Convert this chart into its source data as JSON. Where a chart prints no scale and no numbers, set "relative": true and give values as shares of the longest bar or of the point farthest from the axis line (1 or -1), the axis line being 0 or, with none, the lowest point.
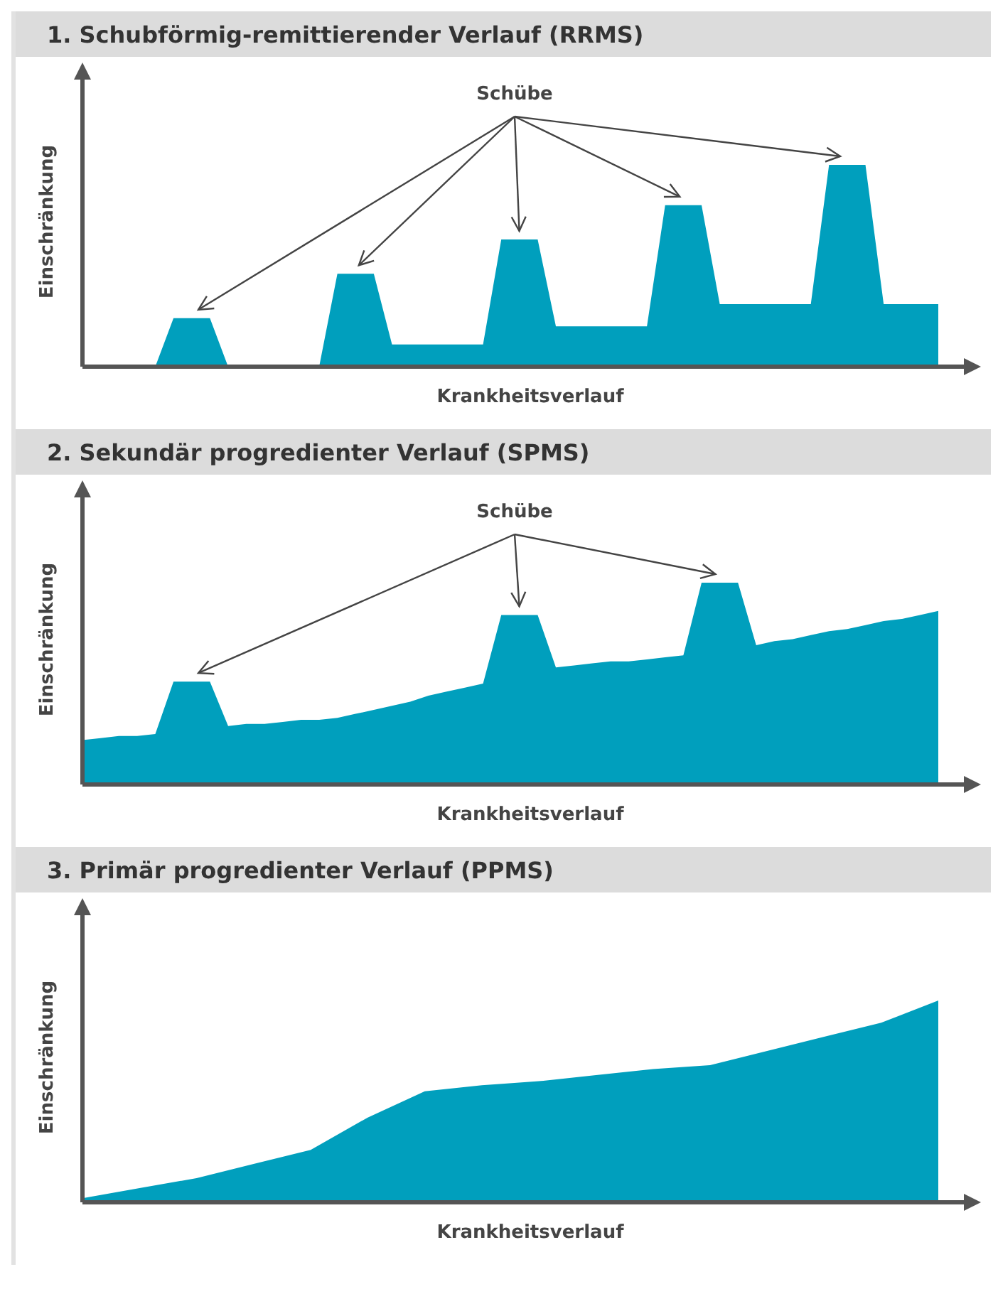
{
  "chart_data": [
    {
      "type": "area",
      "title": "1. Schubförmig-remittierender Verlauf (RRMS)",
      "xlabel": "Krankheitsverlauf",
      "ylabel": "Einschränkung",
      "relative": true,
      "annotations": [
        "Schübe"
      ],
      "categories": [
        null,
        null,
        null,
        null,
        null,
        null,
        null,
        null,
        null,
        null,
        null,
        null,
        null,
        null,
        null,
        null,
        null,
        null,
        null,
        null,
        null,
        null,
        null,
        null,
        null,
        null,
        null,
        null,
        null,
        null,
        null,
        null,
        null,
        null,
        null,
        null,
        null,
        null,
        null,
        null,
        null,
        null,
        null,
        null,
        null,
        null,
        null,
        null
      ],
      "color": "#009fbd",
      "values": [
        0,
        0,
        0,
        0,
        0,
        0.24,
        0.24,
        0.24,
        0,
        0,
        0,
        0,
        0,
        0,
        0.46,
        0.46,
        0.46,
        0.11,
        0.11,
        0.11,
        0.11,
        0.11,
        0.11,
        0.63,
        0.63,
        0.63,
        0.2,
        0.2,
        0.2,
        0.2,
        0.2,
        0.2,
        0.8,
        0.8,
        0.8,
        0.31,
        0.31,
        0.31,
        0.31,
        0.31,
        0.31,
        1,
        1,
        1,
        0.31,
        0.31,
        0.31,
        0.31
      ]
    },
    {
      "type": "area",
      "title": "2. Sekundär progredienter Verlauf (SPMS)",
      "xlabel": "Krankheitsverlauf",
      "ylabel": "Einschränkung",
      "relative": true,
      "annotations": [
        "Schübe"
      ],
      "categories": [
        null,
        null,
        null,
        null,
        null,
        null,
        null,
        null,
        null,
        null,
        null,
        null,
        null,
        null,
        null,
        null,
        null,
        null,
        null,
        null,
        null,
        null,
        null,
        null,
        null,
        null,
        null,
        null,
        null,
        null,
        null,
        null,
        null,
        null,
        null,
        null,
        null,
        null,
        null,
        null,
        null,
        null,
        null,
        null,
        null,
        null,
        null,
        null
      ],
      "color": "#009fbd",
      "values": [
        0.22,
        0.23,
        0.24,
        0.24,
        0.25,
        0.51,
        0.51,
        0.51,
        0.29,
        0.3,
        0.3,
        0.31,
        0.32,
        0.32,
        0.33,
        0.35,
        0.37,
        0.39,
        0.41,
        0.44,
        0.46,
        0.48,
        0.5,
        0.84,
        0.84,
        0.84,
        0.58,
        0.59,
        0.6,
        0.61,
        0.61,
        0.62,
        0.63,
        0.64,
        1,
        1,
        1,
        0.69,
        0.71,
        0.72,
        0.74,
        0.76,
        0.77,
        0.79,
        0.81,
        0.82,
        0.84,
        0.86
      ]
    },
    {
      "type": "area",
      "title": "3. Primär progredienter Verlauf (PPMS)",
      "xlabel": "Krankheitsverlauf",
      "ylabel": "Einschränkung",
      "relative": true,
      "categories": [
        null,
        null,
        null,
        null,
        null,
        null,
        null,
        null,
        null,
        null,
        null,
        null,
        null,
        null,
        null,
        null
      ],
      "color": "#009fbd",
      "values": [
        0.02,
        0.07,
        0.12,
        0.19,
        0.26,
        0.42,
        0.55,
        0.58,
        0.6,
        0.63,
        0.66,
        0.68,
        0.75,
        0.82,
        0.89,
        1
      ]
    }
  ]
}
